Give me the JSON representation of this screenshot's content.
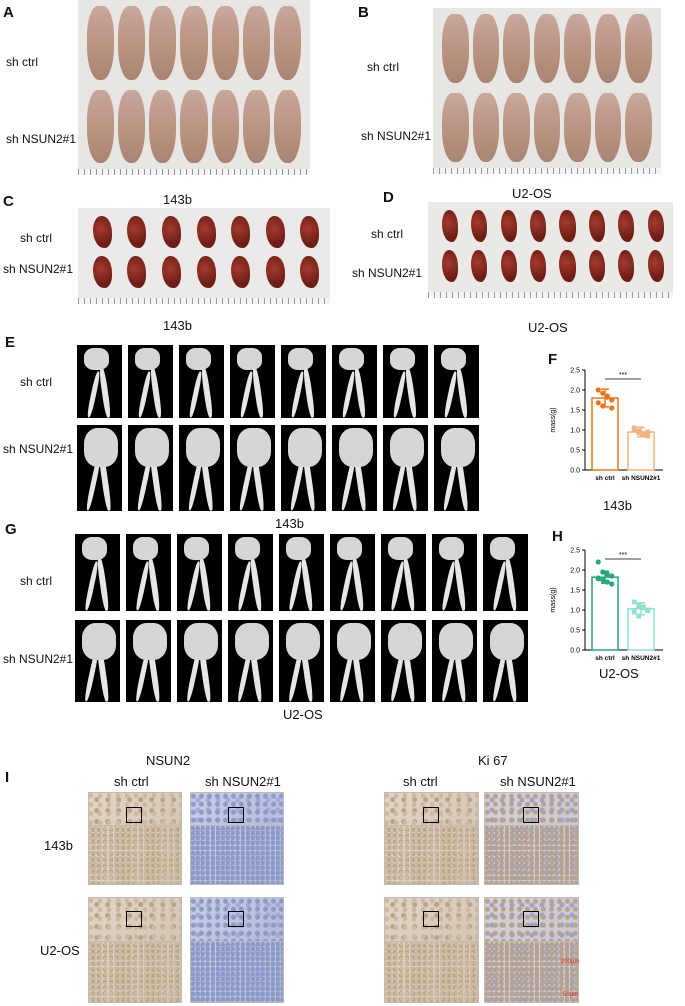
{
  "panels": {
    "A": "A",
    "B": "B",
    "C": "C",
    "D": "D",
    "E": "E",
    "F": "F",
    "G": "G",
    "H": "H",
    "I": "I"
  },
  "groups": {
    "ctrl": "sh ctrl",
    "kd": "sh NSUN2#1"
  },
  "cells": {
    "c143b": "143b",
    "u2os": "U2-OS"
  },
  "ihc": {
    "nsun2": "NSUN2",
    "ki67": "Ki 67"
  },
  "chart_data": [
    {
      "type": "bar",
      "panel": "F",
      "title": "143b",
      "categories": [
        "sh ctrl",
        "sh NSUN2#1"
      ],
      "values": [
        1.8,
        0.95
      ],
      "errors": [
        0.22,
        0.12
      ],
      "points": [
        [
          2.0,
          1.92,
          1.85,
          1.75,
          1.68,
          1.6,
          1.82,
          1.55
        ],
        [
          1.05,
          0.98,
          0.9,
          0.85,
          1.0,
          0.93,
          0.88,
          0.95
        ]
      ],
      "colors": [
        "#E8761F",
        "#F4B27E"
      ],
      "ylabel": "mass(g)",
      "ylim": [
        0,
        2.5
      ],
      "yticks": [
        "0.0",
        "0.5",
        "1.0",
        "1.5",
        "2.0",
        "2.5"
      ],
      "significance": "***"
    },
    {
      "type": "bar",
      "panel": "H",
      "title": "U2-OS",
      "categories": [
        "sh ctrl",
        "sh NSUN2#1"
      ],
      "values": [
        1.82,
        1.03
      ],
      "errors": [
        0.15,
        0.15
      ],
      "points": [
        [
          2.2,
          1.95,
          1.9,
          1.85,
          1.8,
          1.75,
          1.7,
          1.65,
          1.78
        ],
        [
          1.2,
          1.1,
          1.05,
          1.0,
          0.95,
          0.85,
          1.08,
          0.98
        ]
      ],
      "colors": [
        "#27A878",
        "#8FE0CF"
      ],
      "ylabel": "mass(g)",
      "ylim": [
        0,
        2.5
      ],
      "yticks": [
        "0.0",
        "0.5",
        "1.0",
        "1.5",
        "2.0",
        "2.5"
      ],
      "significance": "***"
    }
  ],
  "scalebars": {
    "s1": "200μm",
    "s2": "50μm"
  }
}
